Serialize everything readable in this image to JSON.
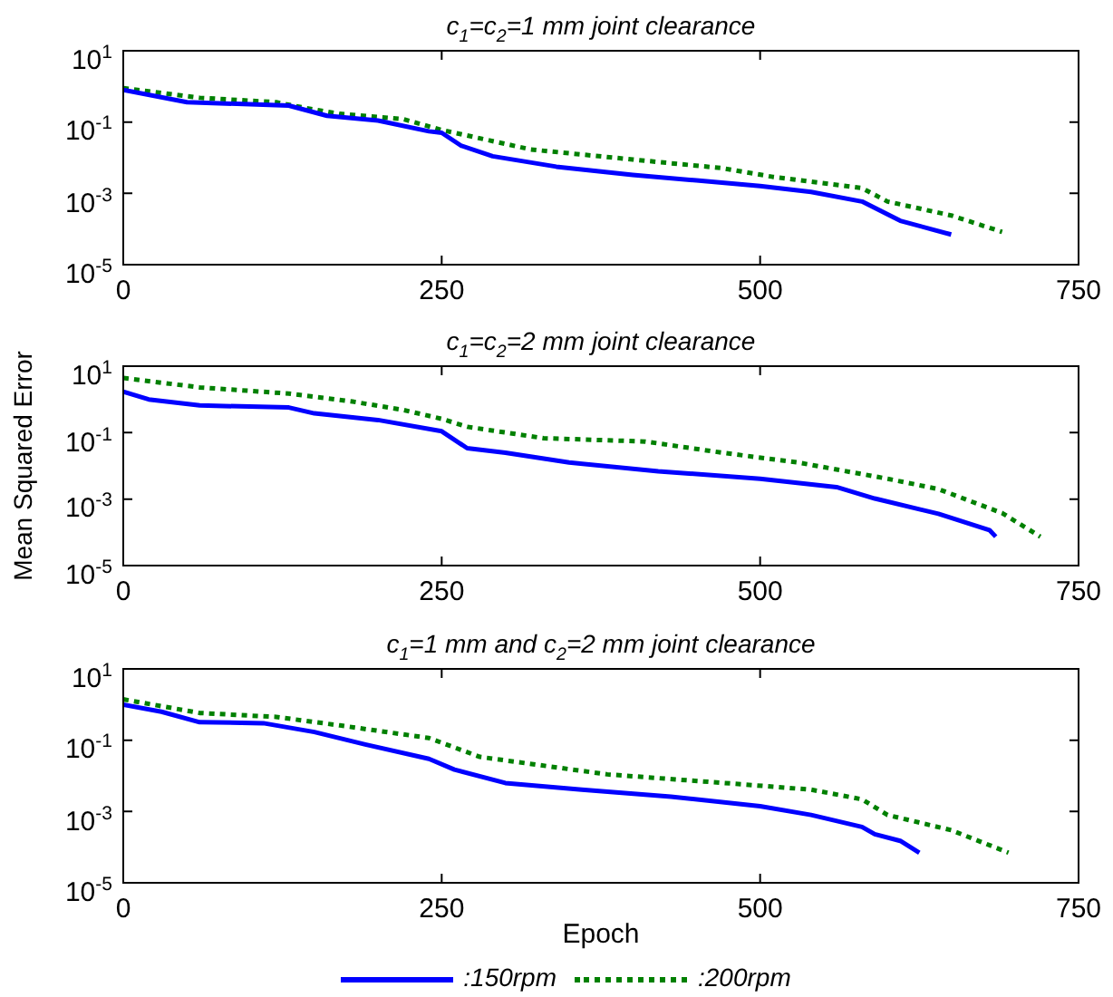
{
  "chart_data": [
    {
      "type": "line",
      "title": "c$_{1}$=c$_{2}$=1 mm joint clearance",
      "xlim": [
        0,
        750
      ],
      "xticks": [
        0,
        250,
        500,
        750
      ],
      "ylim": [
        1e-05,
        10
      ],
      "yticks": [
        {
          "value": 1e-05,
          "label": "10$^{-5}$"
        },
        {
          "value": 0.001,
          "label": "10$^{-3}$"
        },
        {
          "value": 0.1,
          "label": "10$^{-1}$"
        },
        {
          "value": 10,
          "label": "10$^{1}$"
        }
      ],
      "log": "y",
      "grid": false,
      "legend": false,
      "marker": "none",
      "series": [
        {
          "color": "#0000ff",
          "line_style": "solid",
          "x": [
            0,
            50,
            130,
            160,
            200,
            240,
            250,
            265,
            290,
            340,
            400,
            450,
            500,
            540,
            580,
            610,
            650
          ],
          "values": [
            0.8,
            0.36,
            0.29,
            0.15,
            0.11,
            0.055,
            0.05,
            0.022,
            0.011,
            0.0056,
            0.0033,
            0.0023,
            0.0016,
            0.0011,
            0.00059,
            0.00017,
            7e-05
          ]
        },
        {
          "color": "#008000",
          "line_style": "dotted",
          "x": [
            0,
            60,
            120,
            140,
            170,
            220,
            250,
            280,
            320,
            400,
            470,
            510,
            580,
            600,
            650,
            690
          ],
          "values": [
            0.9,
            0.48,
            0.36,
            0.26,
            0.17,
            0.12,
            0.06,
            0.035,
            0.017,
            0.0089,
            0.0051,
            0.0029,
            0.0014,
            0.00059,
            0.00024,
            8.3e-05
          ]
        }
      ]
    },
    {
      "type": "line",
      "title": "c$_{1}$=c$_{2}$=2 mm joint clearance",
      "ylabel": "Mean Squared Error",
      "xlim": [
        0,
        750
      ],
      "xticks": [
        0,
        250,
        500,
        750
      ],
      "ylim": [
        1e-05,
        10
      ],
      "yticks": [
        {
          "value": 1e-05,
          "label": "10$^{-5}$"
        },
        {
          "value": 0.001,
          "label": "10$^{-3}$"
        },
        {
          "value": 0.1,
          "label": "10$^{-1}$"
        },
        {
          "value": 10,
          "label": "10$^{1}$"
        }
      ],
      "log": "y",
      "grid": false,
      "legend": false,
      "marker": "none",
      "series": [
        {
          "color": "#0000ff",
          "line_style": "solid",
          "x": [
            0,
            20,
            60,
            130,
            150,
            200,
            250,
            270,
            300,
            350,
            420,
            500,
            560,
            590,
            640,
            680,
            685
          ],
          "values": [
            1.7,
            1.0,
            0.66,
            0.57,
            0.38,
            0.24,
            0.11,
            0.034,
            0.025,
            0.0126,
            0.0069,
            0.0041,
            0.0023,
            0.00104,
            0.00036,
            0.000117,
            7.4e-05
          ]
        },
        {
          "color": "#008000",
          "line_style": "dotted",
          "x": [
            0,
            60,
            130,
            180,
            220,
            250,
            270,
            330,
            410,
            470,
            530,
            600,
            640,
            690,
            720
          ],
          "values": [
            4.4,
            2.3,
            1.5,
            0.86,
            0.48,
            0.26,
            0.15,
            0.068,
            0.054,
            0.025,
            0.0126,
            0.0041,
            0.002,
            0.00038,
            7.4e-05
          ]
        }
      ]
    },
    {
      "type": "line",
      "title": "c$_{1}$=1 mm and c$_{2}$=2 mm joint clearance",
      "xlabel": "Epoch",
      "xlim": [
        0,
        750
      ],
      "xticks": [
        0,
        250,
        500,
        750
      ],
      "ylim": [
        1e-05,
        10
      ],
      "yticks": [
        {
          "value": 1e-05,
          "label": "10$^{-5}$"
        },
        {
          "value": 0.001,
          "label": "10$^{-3}$"
        },
        {
          "value": 0.1,
          "label": "10$^{-1}$"
        },
        {
          "value": 10,
          "label": "10$^{1}$"
        }
      ],
      "log": "y",
      "grid": false,
      "legend": "bottom",
      "marker": "none",
      "series": [
        {
          "name": ":150rpm",
          "color": "#0000ff",
          "line_style": "solid",
          "x": [
            0,
            30,
            60,
            110,
            150,
            190,
            240,
            260,
            300,
            360,
            430,
            500,
            540,
            580,
            590,
            610,
            625
          ],
          "values": [
            1.0,
            0.63,
            0.32,
            0.3,
            0.17,
            0.076,
            0.03,
            0.015,
            0.0063,
            0.0041,
            0.0026,
            0.0014,
            0.0008,
            0.00037,
            0.00023,
            0.00015,
            7e-05
          ]
        },
        {
          "name": ":200rpm",
          "color": "#008000",
          "line_style": "dotted",
          "x": [
            0,
            60,
            120,
            170,
            240,
            280,
            380,
            480,
            540,
            580,
            600,
            650,
            695
          ],
          "values": [
            1.4,
            0.58,
            0.45,
            0.26,
            0.115,
            0.034,
            0.011,
            0.006,
            0.0041,
            0.0022,
            0.0008,
            0.0003,
            7e-05
          ]
        }
      ]
    }
  ]
}
